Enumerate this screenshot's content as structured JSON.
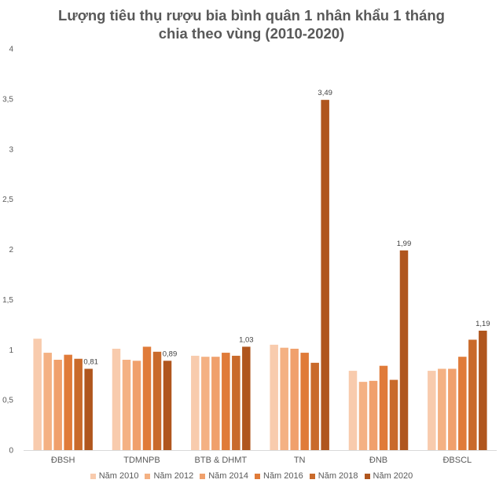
{
  "chart_data": {
    "type": "bar",
    "title_lines": [
      "Lượng tiêu thụ rượu bia bình quân 1 nhân khẩu 1 tháng",
      "chia theo vùng (2010-2020)"
    ],
    "categories": [
      "ĐBSH",
      "TDMNPB",
      "BTB & DHMT",
      "TN",
      "ĐNB",
      "ĐBSCL"
    ],
    "series": [
      {
        "name": "Năm 2010",
        "color": "#F8CBAD",
        "values": [
          1.11,
          1.01,
          0.94,
          1.05,
          0.79,
          0.79
        ]
      },
      {
        "name": "Năm 2012",
        "color": "#F4B183",
        "values": [
          0.97,
          0.9,
          0.93,
          1.02,
          0.68,
          0.81
        ]
      },
      {
        "name": "Năm 2014",
        "color": "#F0A06C",
        "values": [
          0.9,
          0.89,
          0.93,
          1.01,
          0.69,
          0.81
        ]
      },
      {
        "name": "Năm 2016",
        "color": "#E07B39",
        "values": [
          0.95,
          1.03,
          0.97,
          0.97,
          0.84,
          0.93
        ]
      },
      {
        "name": "Năm 2018",
        "color": "#C96A2B",
        "values": [
          0.91,
          0.98,
          0.94,
          0.87,
          0.7,
          1.1
        ]
      },
      {
        "name": "Năm 2020",
        "color": "#B0561E",
        "values": [
          0.81,
          0.89,
          1.03,
          3.49,
          1.99,
          1.19
        ]
      }
    ],
    "data_labels": {
      "series": "Năm 2020",
      "texts": [
        "0,81",
        "0,89",
        "1,03",
        "3,49",
        "1,99",
        "1,19"
      ]
    },
    "yticks": [
      0,
      0.5,
      1,
      1.5,
      2,
      2.5,
      3,
      3.5,
      4
    ],
    "ytick_labels": [
      "0",
      "0,5",
      "1",
      "1,5",
      "2",
      "2,5",
      "3",
      "3,5",
      "4"
    ],
    "ylim": [
      0,
      4
    ],
    "grid": false,
    "legend": "bottom",
    "axis_color": "#D9D9D9"
  }
}
